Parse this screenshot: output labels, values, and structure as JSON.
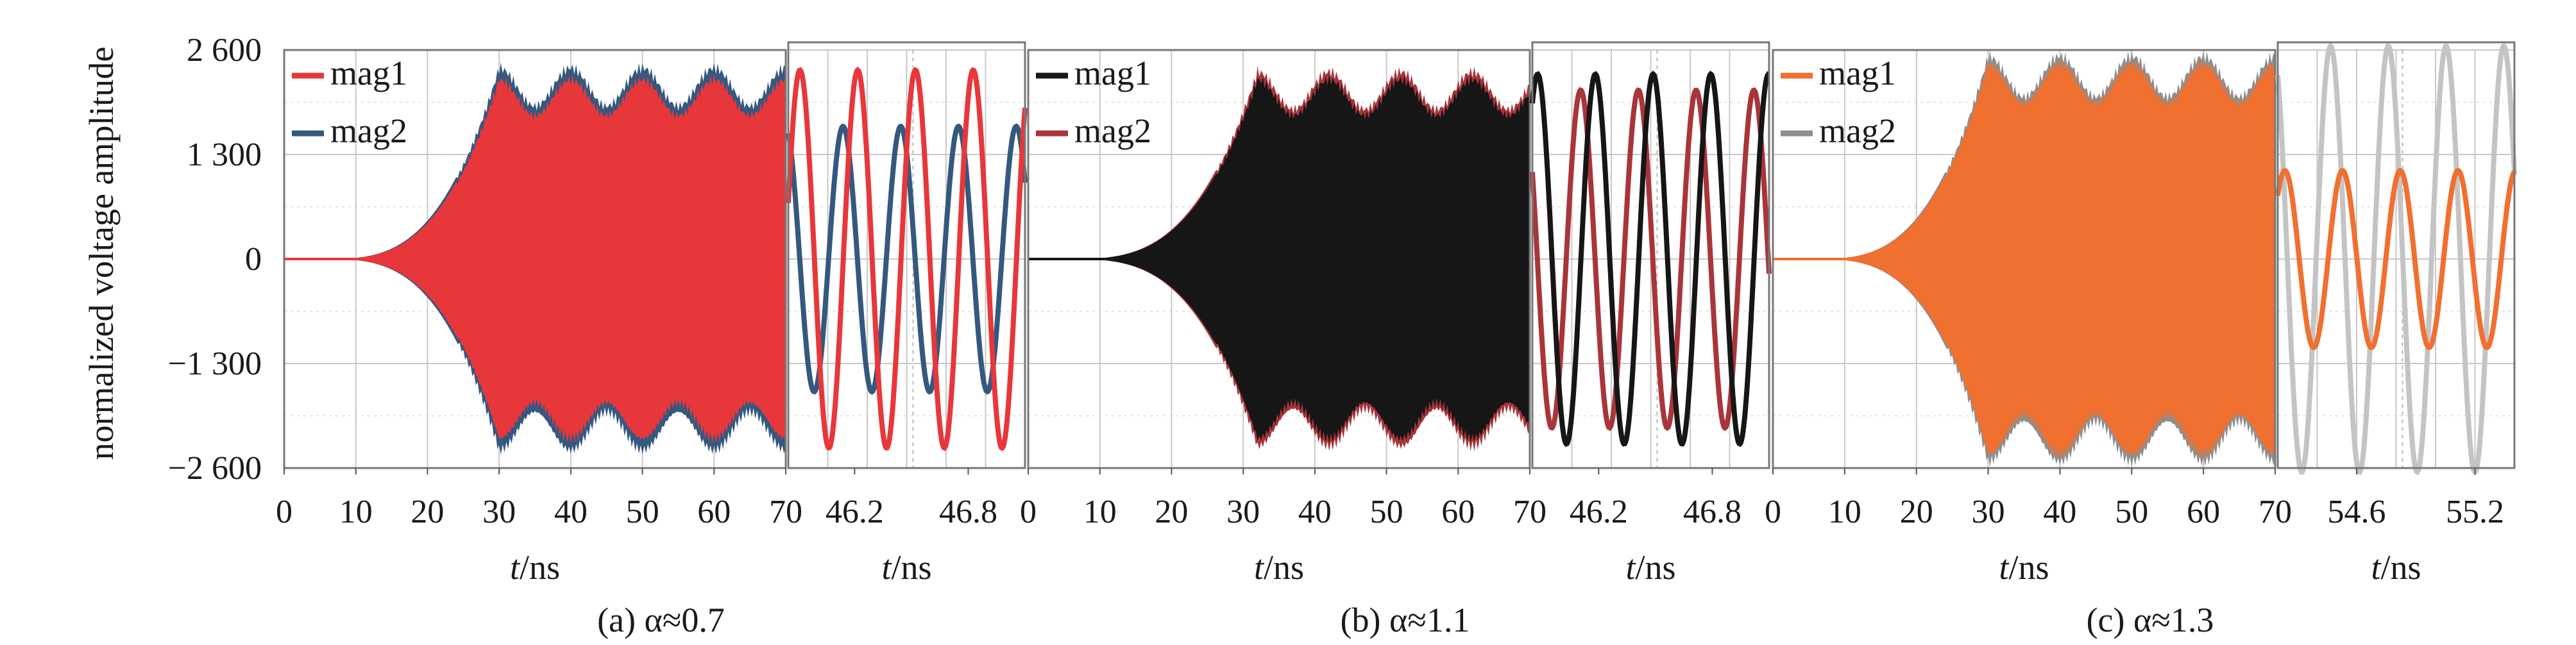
{
  "figure": {
    "ylabel": "normalized voltage amplitude",
    "ylim": [
      -2600,
      2600
    ],
    "yticks": [
      2600,
      1300,
      0,
      -1300,
      -2600
    ],
    "ytick_labels": [
      "2 600",
      "1 300",
      "0",
      "−1 300",
      "−2 600"
    ]
  },
  "chart_data": [
    {
      "type": "line",
      "id": "a",
      "caption": "(a) α≈0.7",
      "main": {
        "xlabel_italic": "t",
        "xlabel_unit": "/ns",
        "xlim": [
          0,
          70
        ],
        "xticks": [
          0,
          10,
          20,
          30,
          40,
          50,
          60,
          70
        ],
        "xtick_labels": [
          "0",
          "10",
          "20",
          "30",
          "40",
          "50",
          "60",
          "70"
        ],
        "envelope": {
          "growth_start_ns": 15,
          "saturation_ns": 30,
          "mag1_peak": 2300,
          "mag2_peak": 2450,
          "beat_period_ns": 10
        }
      },
      "inset": {
        "xlabel_italic": "t",
        "xlabel_unit": "/ns",
        "xlim": [
          45.85,
          47.1
        ],
        "xtick_labels": [
          "46.2",
          "46.8"
        ],
        "xtick_values": [
          46.2,
          46.8
        ],
        "series_amplitudes": [
          2350,
          1650
        ]
      },
      "legend_position": "top-left",
      "series": [
        {
          "name": "mag1",
          "color": "#e8373a"
        },
        {
          "name": "mag2",
          "color": "#35587f"
        }
      ]
    },
    {
      "type": "line",
      "id": "b",
      "caption": "(b) α≈1.1",
      "main": {
        "xlabel_italic": "t",
        "xlabel_unit": "/ns",
        "xlim": [
          0,
          70
        ],
        "xticks": [
          0,
          10,
          20,
          30,
          40,
          50,
          60,
          70
        ],
        "xtick_labels": [
          "0",
          "10",
          "20",
          "30",
          "40",
          "50",
          "60",
          "70"
        ],
        "envelope": {
          "growth_start_ns": 15,
          "saturation_ns": 32,
          "mag1_peak": 2300,
          "mag2_peak": 2400,
          "beat_period_ns": 10
        }
      },
      "inset": {
        "xlabel_italic": "t",
        "xlabel_unit": "/ns",
        "xlim": [
          45.85,
          47.1
        ],
        "xtick_labels": [
          "46.2",
          "46.8"
        ],
        "xtick_values": [
          46.2,
          46.8
        ],
        "series_amplitudes": [
          2300,
          2100
        ]
      },
      "legend_position": "top-left",
      "series": [
        {
          "name": "mag1",
          "color": "#161616"
        },
        {
          "name": "mag2",
          "color": "#a8353a"
        }
      ]
    },
    {
      "type": "line",
      "id": "c",
      "caption": "(c) α≈1.3",
      "main": {
        "xlabel_italic": "t",
        "xlabel_unit": "/ns",
        "xlim": [
          0,
          70
        ],
        "xticks": [
          0,
          10,
          20,
          30,
          40,
          50,
          60,
          70
        ],
        "xtick_labels": [
          "0",
          "10",
          "20",
          "30",
          "40",
          "50",
          "60",
          "70"
        ],
        "envelope": {
          "growth_start_ns": 15,
          "saturation_ns": 30,
          "mag1_peak": 2500,
          "mag2_peak": 2600,
          "beat_period_ns": 10
        }
      },
      "inset": {
        "xlabel_italic": "t",
        "xlabel_unit": "/ns",
        "xlim": [
          54.2,
          55.4
        ],
        "xtick_labels": [
          "54.6",
          "55.2"
        ],
        "xtick_values": [
          54.6,
          55.2
        ],
        "series_amplitudes": [
          1100,
          2650
        ]
      },
      "legend_position": "top-left",
      "series": [
        {
          "name": "mag1",
          "color": "#f07030"
        },
        {
          "name": "mag2",
          "color": "#8e8e8e"
        }
      ]
    }
  ]
}
